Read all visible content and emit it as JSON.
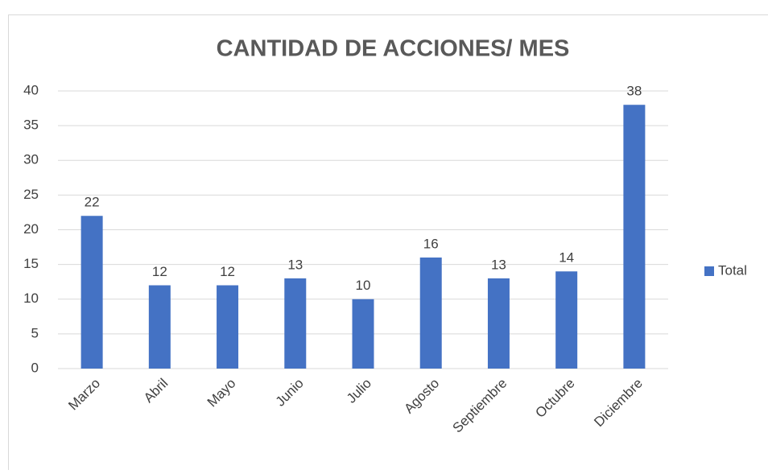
{
  "chart_data": {
    "type": "bar",
    "title": "CANTIDAD DE ACCIONES/ MES",
    "categories": [
      "Marzo",
      "Abril",
      "Mayo",
      "Junio",
      "Julio",
      "Agosto",
      "Septiembre",
      "Octubre",
      "Diciembre"
    ],
    "series": [
      {
        "name": "Total",
        "color": "#4472c4",
        "values": [
          22,
          12,
          12,
          13,
          10,
          16,
          13,
          14,
          38
        ]
      }
    ],
    "ylim": [
      0,
      40
    ],
    "yticks": [
      0,
      5,
      10,
      15,
      20,
      25,
      30,
      35,
      40
    ],
    "grid": true,
    "data_labels": true,
    "legend": "right"
  }
}
